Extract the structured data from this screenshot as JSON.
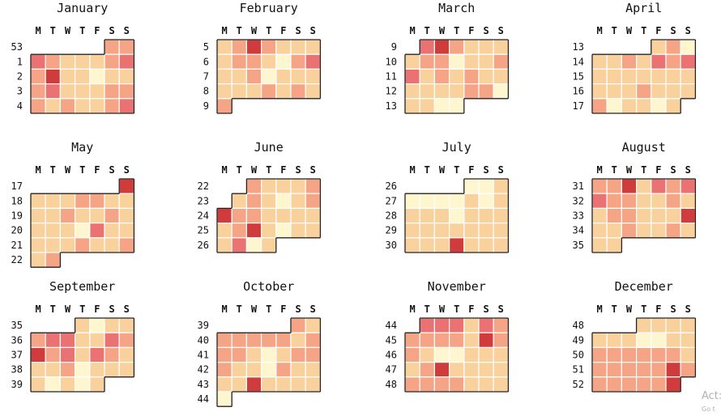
{
  "chart_data": {
    "type": "heatmap",
    "layout": "calendar",
    "weekday_labels": [
      "M",
      "T",
      "W",
      "T",
      "F",
      "S",
      "S"
    ],
    "color_scale": [
      "#fdf6cf",
      "#f9d19c",
      "#f5a585",
      "#ea7272",
      "#d03c3c"
    ],
    "months": [
      {
        "name": "January",
        "weeks": [
          {
            "week": "53",
            "values": [
              null,
              null,
              null,
              null,
              null,
              2,
              2
            ]
          },
          {
            "week": "1",
            "values": [
              3,
              2,
              1,
              1,
              1,
              2,
              3
            ]
          },
          {
            "week": "2",
            "values": [
              2,
              4,
              1,
              1,
              0,
              1,
              1
            ]
          },
          {
            "week": "3",
            "values": [
              2,
              3,
              1,
              1,
              1,
              2,
              2
            ]
          },
          {
            "week": "4",
            "values": [
              2,
              1,
              2,
              1,
              1,
              2,
              3
            ]
          }
        ]
      },
      {
        "name": "February",
        "weeks": [
          {
            "week": "5",
            "values": [
              1,
              2,
              4,
              2,
              1,
              1,
              1
            ]
          },
          {
            "week": "6",
            "values": [
              1,
              2,
              2,
              1,
              0,
              2,
              3
            ]
          },
          {
            "week": "7",
            "values": [
              1,
              1,
              2,
              0,
              1,
              1,
              1
            ]
          },
          {
            "week": "8",
            "values": [
              1,
              1,
              1,
              2,
              1,
              2,
              1
            ]
          },
          {
            "week": "9",
            "values": [
              2,
              null,
              null,
              null,
              null,
              null,
              null
            ]
          }
        ]
      },
      {
        "name": "March",
        "weeks": [
          {
            "week": "9",
            "values": [
              null,
              3,
              4,
              2,
              1,
              1,
              1
            ]
          },
          {
            "week": "10",
            "values": [
              1,
              2,
              2,
              0,
              1,
              1,
              2
            ]
          },
          {
            "week": "11",
            "values": [
              3,
              1,
              2,
              1,
              2,
              1,
              1
            ]
          },
          {
            "week": "12",
            "values": [
              1,
              1,
              1,
              1,
              2,
              2,
              0
            ]
          },
          {
            "week": "13",
            "values": [
              1,
              1,
              0,
              0,
              null,
              null,
              null
            ]
          }
        ]
      },
      {
        "name": "April",
        "weeks": [
          {
            "week": "13",
            "values": [
              null,
              null,
              null,
              null,
              1,
              2,
              0
            ]
          },
          {
            "week": "14",
            "values": [
              1,
              1,
              2,
              1,
              3,
              2,
              3
            ]
          },
          {
            "week": "15",
            "values": [
              1,
              1,
              1,
              1,
              1,
              1,
              1
            ]
          },
          {
            "week": "16",
            "values": [
              1,
              1,
              1,
              2,
              1,
              1,
              1
            ]
          },
          {
            "week": "17",
            "values": [
              2,
              0,
              1,
              1,
              0,
              1,
              null
            ]
          }
        ]
      },
      {
        "name": "May",
        "weeks": [
          {
            "week": "17",
            "values": [
              null,
              null,
              null,
              null,
              null,
              null,
              4
            ]
          },
          {
            "week": "18",
            "values": [
              1,
              1,
              1,
              2,
              2,
              1,
              1
            ]
          },
          {
            "week": "19",
            "values": [
              1,
              1,
              2,
              1,
              1,
              2,
              1
            ]
          },
          {
            "week": "20",
            "values": [
              1,
              1,
              1,
              0,
              3,
              1,
              1
            ]
          },
          {
            "week": "21",
            "values": [
              1,
              1,
              1,
              2,
              1,
              1,
              2
            ]
          },
          {
            "week": "22",
            "values": [
              1,
              2,
              null,
              null,
              null,
              null,
              null
            ]
          }
        ]
      },
      {
        "name": "June",
        "weeks": [
          {
            "week": "22",
            "values": [
              null,
              null,
              2,
              1,
              1,
              1,
              2
            ]
          },
          {
            "week": "23",
            "values": [
              null,
              1,
              2,
              1,
              0,
              1,
              2
            ]
          },
          {
            "week": "24",
            "values": [
              4,
              2,
              2,
              1,
              1,
              1,
              1
            ]
          },
          {
            "week": "25",
            "values": [
              1,
              2,
              4,
              1,
              0,
              1,
              1
            ]
          },
          {
            "week": "26",
            "values": [
              1,
              3,
              0,
              1,
              null,
              null,
              null
            ]
          }
        ]
      },
      {
        "name": "July",
        "weeks": [
          {
            "week": "26",
            "values": [
              null,
              null,
              null,
              null,
              0,
              0,
              1
            ]
          },
          {
            "week": "27",
            "values": [
              0,
              0,
              0,
              0,
              1,
              0,
              1
            ]
          },
          {
            "week": "28",
            "values": [
              1,
              1,
              1,
              0,
              1,
              1,
              1
            ]
          },
          {
            "week": "29",
            "values": [
              1,
              1,
              1,
              1,
              1,
              1,
              1
            ]
          },
          {
            "week": "30",
            "values": [
              1,
              1,
              1,
              4,
              1,
              1,
              1
            ]
          }
        ]
      },
      {
        "name": "August",
        "weeks": [
          {
            "week": "31",
            "values": [
              2,
              2,
              4,
              1,
              3,
              2,
              3
            ]
          },
          {
            "week": "32",
            "values": [
              3,
              2,
              2,
              1,
              1,
              2,
              1
            ]
          },
          {
            "week": "33",
            "values": [
              1,
              2,
              2,
              1,
              1,
              1,
              4
            ]
          },
          {
            "week": "34",
            "values": [
              1,
              1,
              2,
              1,
              1,
              2,
              1
            ]
          },
          {
            "week": "35",
            "values": [
              1,
              1,
              null,
              null,
              null,
              null,
              null
            ]
          }
        ]
      },
      {
        "name": "September",
        "weeks": [
          {
            "week": "35",
            "values": [
              null,
              null,
              null,
              1,
              0,
              1,
              1
            ]
          },
          {
            "week": "36",
            "values": [
              2,
              3,
              3,
              1,
              1,
              3,
              2
            ]
          },
          {
            "week": "37",
            "values": [
              4,
              2,
              3,
              1,
              3,
              2,
              1
            ]
          },
          {
            "week": "38",
            "values": [
              1,
              1,
              2,
              0,
              1,
              1,
              1
            ]
          },
          {
            "week": "39",
            "values": [
              1,
              0,
              1,
              0,
              1,
              null,
              null
            ]
          }
        ]
      },
      {
        "name": "October",
        "weeks": [
          {
            "week": "39",
            "values": [
              null,
              null,
              null,
              null,
              null,
              2,
              1
            ]
          },
          {
            "week": "40",
            "values": [
              2,
              2,
              2,
              2,
              2,
              1,
              2
            ]
          },
          {
            "week": "41",
            "values": [
              2,
              2,
              1,
              0,
              1,
              2,
              2
            ]
          },
          {
            "week": "42",
            "values": [
              2,
              1,
              1,
              0,
              2,
              1,
              1
            ]
          },
          {
            "week": "43",
            "values": [
              1,
              1,
              4,
              1,
              1,
              1,
              1
            ]
          },
          {
            "week": "44",
            "values": [
              0,
              null,
              null,
              null,
              null,
              null,
              null
            ]
          }
        ]
      },
      {
        "name": "November",
        "weeks": [
          {
            "week": "44",
            "values": [
              null,
              3,
              3,
              3,
              1,
              3,
              2
            ]
          },
          {
            "week": "45",
            "values": [
              2,
              2,
              2,
              2,
              1,
              4,
              2
            ]
          },
          {
            "week": "46",
            "values": [
              2,
              1,
              0,
              0,
              1,
              1,
              1
            ]
          },
          {
            "week": "47",
            "values": [
              1,
              2,
              4,
              1,
              1,
              1,
              1
            ]
          },
          {
            "week": "48",
            "values": [
              2,
              2,
              2,
              2,
              1,
              1,
              1
            ]
          }
        ]
      },
      {
        "name": "December",
        "weeks": [
          {
            "week": "48",
            "values": [
              null,
              null,
              null,
              1,
              1,
              1,
              1
            ]
          },
          {
            "week": "49",
            "values": [
              1,
              1,
              1,
              0,
              0,
              1,
              1
            ]
          },
          {
            "week": "50",
            "values": [
              2,
              2,
              2,
              2,
              2,
              2,
              1
            ]
          },
          {
            "week": "51",
            "values": [
              2,
              2,
              2,
              2,
              2,
              4,
              2
            ]
          },
          {
            "week": "52",
            "values": [
              2,
              2,
              2,
              2,
              2,
              4,
              null
            ]
          }
        ]
      }
    ]
  },
  "watermark": {
    "line1": "Act:",
    "line2": "Go t"
  }
}
